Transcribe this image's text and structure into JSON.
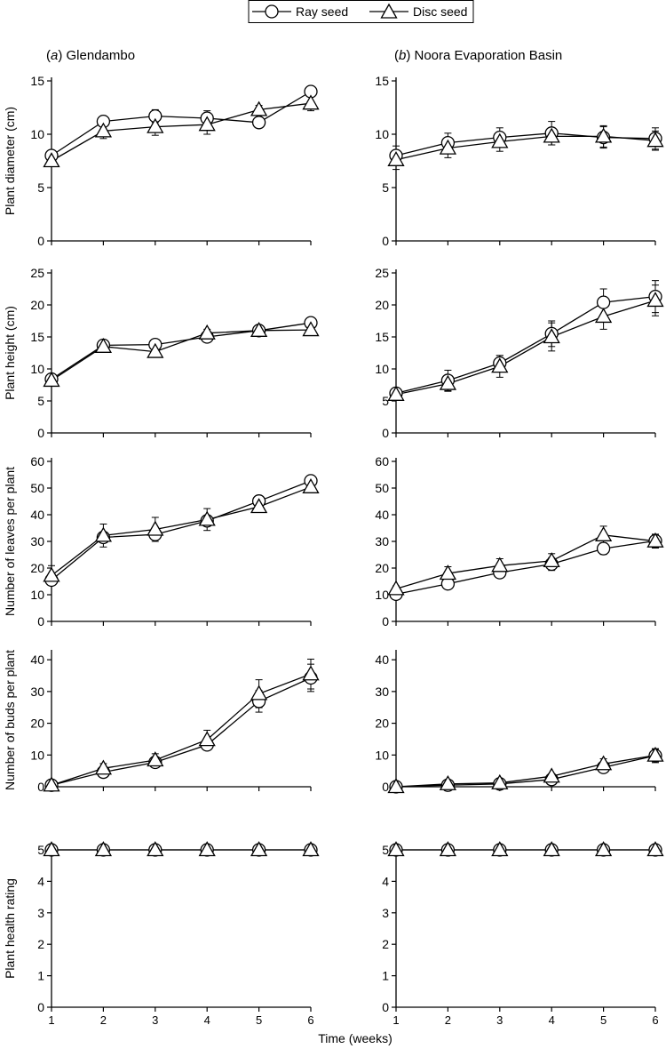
{
  "legend": {
    "items": [
      {
        "label": "Ray seed",
        "marker": "circle"
      },
      {
        "label": "Disc seed",
        "marker": "triangle"
      }
    ],
    "placement": "top-center"
  },
  "panels": [
    {
      "prefix": "(",
      "letter": "a",
      "suffix": ") Glendambo"
    },
    {
      "prefix": "(",
      "letter": "b",
      "suffix": ") Noora Evaporation Basin"
    }
  ],
  "xlabel": "Time (weeks)",
  "colors": {
    "line": "#000000",
    "marker_fill": "#ffffff"
  },
  "chart_data": [
    {
      "type": "line",
      "panel": "a",
      "row": 1,
      "ylabel": "Plant diameter (cm)",
      "ylim": [
        0,
        15
      ],
      "yticks": [
        0,
        5,
        10,
        15
      ],
      "x": [
        1,
        2,
        3,
        4,
        5,
        6
      ],
      "xticks": [
        1,
        2,
        3,
        4,
        5,
        6
      ],
      "series": [
        {
          "name": "Ray seed",
          "values": [
            8.0,
            11.2,
            11.7,
            11.5,
            11.1,
            14.0
          ],
          "error": [
            0.3,
            0.5,
            0.6,
            0.7,
            0.4,
            0.4
          ]
        },
        {
          "name": "Disc seed",
          "values": [
            7.5,
            10.3,
            10.7,
            10.9,
            12.3,
            12.9
          ],
          "error": [
            0.3,
            0.7,
            0.8,
            0.9,
            0.4,
            0.7
          ]
        }
      ]
    },
    {
      "type": "line",
      "panel": "b",
      "row": 1,
      "ylabel": "",
      "ylim": [
        0,
        15
      ],
      "yticks": [
        0,
        5,
        10,
        15
      ],
      "x": [
        1,
        2,
        3,
        4,
        5,
        6
      ],
      "xticks": [
        1,
        2,
        3,
        4,
        5,
        6
      ],
      "series": [
        {
          "name": "Ray seed",
          "values": [
            8.0,
            9.2,
            9.7,
            10.1,
            9.7,
            9.6
          ],
          "error": [
            0.9,
            0.9,
            0.9,
            1.1,
            1.0,
            1.0
          ]
        },
        {
          "name": "Disc seed",
          "values": [
            7.6,
            8.7,
            9.3,
            9.8,
            9.8,
            9.4
          ],
          "error": [
            0.9,
            0.9,
            0.9,
            0.8,
            1.0,
            0.9
          ]
        }
      ]
    },
    {
      "type": "line",
      "panel": "a",
      "row": 2,
      "ylabel": "Plant height (cm)",
      "ylim": [
        0,
        25
      ],
      "yticks": [
        0,
        5,
        10,
        15,
        20,
        25
      ],
      "x": [
        1,
        2,
        3,
        4,
        5,
        6
      ],
      "xticks": [
        1,
        2,
        3,
        4,
        5,
        6
      ],
      "series": [
        {
          "name": "Ray seed",
          "values": [
            8.4,
            13.7,
            13.8,
            15.0,
            16.0,
            17.2
          ],
          "error": [
            0.5,
            0.5,
            0.6,
            0.6,
            0.6,
            0.6
          ]
        },
        {
          "name": "Disc seed",
          "values": [
            8.2,
            13.5,
            12.7,
            15.6,
            16.0,
            16.1
          ],
          "error": [
            0.5,
            0.6,
            0.6,
            0.6,
            0.6,
            0.6
          ]
        }
      ]
    },
    {
      "type": "line",
      "panel": "b",
      "row": 2,
      "ylabel": "",
      "ylim": [
        0,
        25
      ],
      "yticks": [
        0,
        5,
        10,
        15,
        20,
        25
      ],
      "x": [
        1,
        2,
        3,
        4,
        5,
        6
      ],
      "xticks": [
        1,
        2,
        3,
        4,
        5,
        6
      ],
      "series": [
        {
          "name": "Ray seed",
          "values": [
            6.2,
            8.2,
            10.9,
            15.5,
            20.4,
            21.3
          ],
          "error": [
            0.4,
            1.6,
            1.2,
            2.0,
            2.1,
            2.5
          ]
        },
        {
          "name": "Disc seed",
          "values": [
            6.0,
            7.7,
            10.4,
            15.0,
            18.2,
            20.7
          ],
          "error": [
            0.4,
            1.2,
            1.7,
            2.2,
            2.0,
            2.4
          ]
        }
      ]
    },
    {
      "type": "line",
      "panel": "a",
      "row": 3,
      "ylabel": "Number of leaves per plant",
      "ylim": [
        0,
        60
      ],
      "yticks": [
        0,
        10,
        20,
        30,
        40,
        50,
        60
      ],
      "x": [
        1,
        2,
        3,
        4,
        5,
        6
      ],
      "xticks": [
        1,
        2,
        3,
        4,
        5,
        6
      ],
      "series": [
        {
          "name": "Ray seed",
          "values": [
            15.5,
            31.5,
            32.6,
            37.7,
            45.1,
            52.7
          ],
          "error": [
            1.0,
            1.1,
            1.2,
            1.3,
            1.2,
            1.1
          ]
        },
        {
          "name": "Disc seed",
          "values": [
            17.2,
            32.2,
            34.5,
            38.2,
            43.0,
            50.4
          ],
          "error": [
            3.7,
            4.3,
            4.5,
            4.1,
            1.3,
            1.2
          ]
        }
      ]
    },
    {
      "type": "line",
      "panel": "b",
      "row": 3,
      "ylabel": "",
      "ylim": [
        0,
        60
      ],
      "yticks": [
        0,
        10,
        20,
        30,
        40,
        50,
        60
      ],
      "x": [
        1,
        2,
        3,
        4,
        5,
        6
      ],
      "xticks": [
        1,
        2,
        3,
        4,
        5,
        6
      ],
      "series": [
        {
          "name": "Ray seed",
          "values": [
            10.2,
            14.1,
            18.3,
            21.5,
            27.3,
            30.2
          ],
          "error": [
            0.8,
            1.2,
            1.4,
            2.4,
            2.2,
            2.4
          ]
        },
        {
          "name": "Disc seed",
          "values": [
            12.2,
            18.0,
            20.9,
            22.7,
            32.4,
            30.1
          ],
          "error": [
            1.1,
            2.5,
            2.6,
            2.7,
            3.3,
            2.6
          ]
        }
      ]
    },
    {
      "type": "line",
      "panel": "a",
      "row": 4,
      "ylabel": "Number of buds per plant",
      "ylim": [
        0,
        42
      ],
      "yticks": [
        0,
        10,
        20,
        30,
        40
      ],
      "x": [
        1,
        2,
        3,
        4,
        5,
        6
      ],
      "xticks": [
        1,
        2,
        3,
        4,
        5,
        6
      ],
      "series": [
        {
          "name": "Ray seed",
          "values": [
            0.5,
            4.6,
            7.7,
            13.2,
            26.9,
            34.3
          ],
          "error": [
            0.3,
            0.8,
            1.4,
            1.6,
            3.4,
            4.3
          ]
        },
        {
          "name": "Disc seed",
          "values": [
            0.5,
            5.8,
            8.4,
            14.8,
            29.3,
            35.5
          ],
          "error": [
            0.3,
            1.5,
            2.0,
            3.0,
            4.4,
            4.7
          ]
        }
      ]
    },
    {
      "type": "line",
      "panel": "b",
      "row": 4,
      "ylabel": "",
      "ylim": [
        0,
        42
      ],
      "yticks": [
        0,
        10,
        20,
        30,
        40
      ],
      "x": [
        1,
        2,
        3,
        4,
        5,
        6
      ],
      "xticks": [
        1,
        2,
        3,
        4,
        5,
        6
      ],
      "series": [
        {
          "name": "Ray seed",
          "values": [
            0.0,
            0.5,
            0.9,
            2.3,
            6.1,
            9.8
          ],
          "error": [
            0.2,
            0.3,
            0.4,
            0.8,
            1.4,
            2.2
          ]
        },
        {
          "name": "Disc seed",
          "values": [
            0.0,
            0.9,
            1.2,
            3.3,
            7.2,
            9.9
          ],
          "error": [
            0.2,
            0.3,
            0.4,
            0.8,
            1.6,
            2.0
          ]
        }
      ]
    },
    {
      "type": "line",
      "panel": "a",
      "row": 5,
      "ylabel": "Plant health rating",
      "ylim": [
        0,
        5
      ],
      "yticks": [
        0,
        1,
        2,
        3,
        4,
        5
      ],
      "x": [
        1,
        2,
        3,
        4,
        5,
        6
      ],
      "xticks": [
        1,
        2,
        3,
        4,
        5,
        6
      ],
      "series": [
        {
          "name": "Ray seed",
          "values": [
            5,
            5,
            5,
            5,
            5,
            5
          ]
        },
        {
          "name": "Disc seed",
          "values": [
            5,
            5,
            5,
            5,
            5,
            5
          ]
        }
      ]
    },
    {
      "type": "line",
      "panel": "b",
      "row": 5,
      "ylabel": "",
      "ylim": [
        0,
        5
      ],
      "yticks": [
        0,
        1,
        2,
        3,
        4,
        5
      ],
      "x": [
        1,
        2,
        3,
        4,
        5,
        6
      ],
      "xticks": [
        1,
        2,
        3,
        4,
        5,
        6
      ],
      "series": [
        {
          "name": "Ray seed",
          "values": [
            5,
            5,
            5,
            5,
            5,
            5
          ]
        },
        {
          "name": "Disc seed",
          "values": [
            5,
            5,
            5,
            5,
            5,
            5
          ]
        }
      ]
    }
  ]
}
